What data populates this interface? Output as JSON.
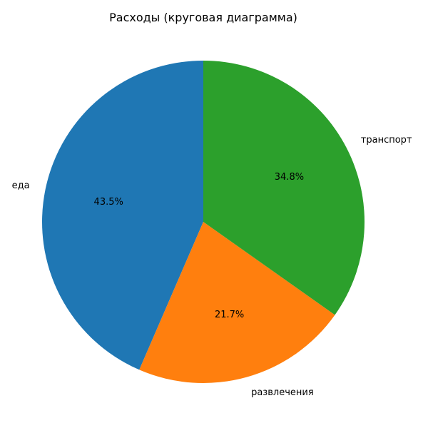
{
  "chart_data": {
    "type": "pie",
    "title": "Расходы (круговая диаграмма)",
    "categories": [
      "еда",
      "развлечения",
      "транспорт"
    ],
    "values": [
      43.5,
      21.7,
      34.8
    ],
    "value_labels": [
      "43.5%",
      "21.7%",
      "34.8%"
    ],
    "colors": [
      "#1f77b4",
      "#ff7f0e",
      "#2ca02c"
    ],
    "start_angle_deg": 90,
    "direction": "counterclockwise"
  }
}
